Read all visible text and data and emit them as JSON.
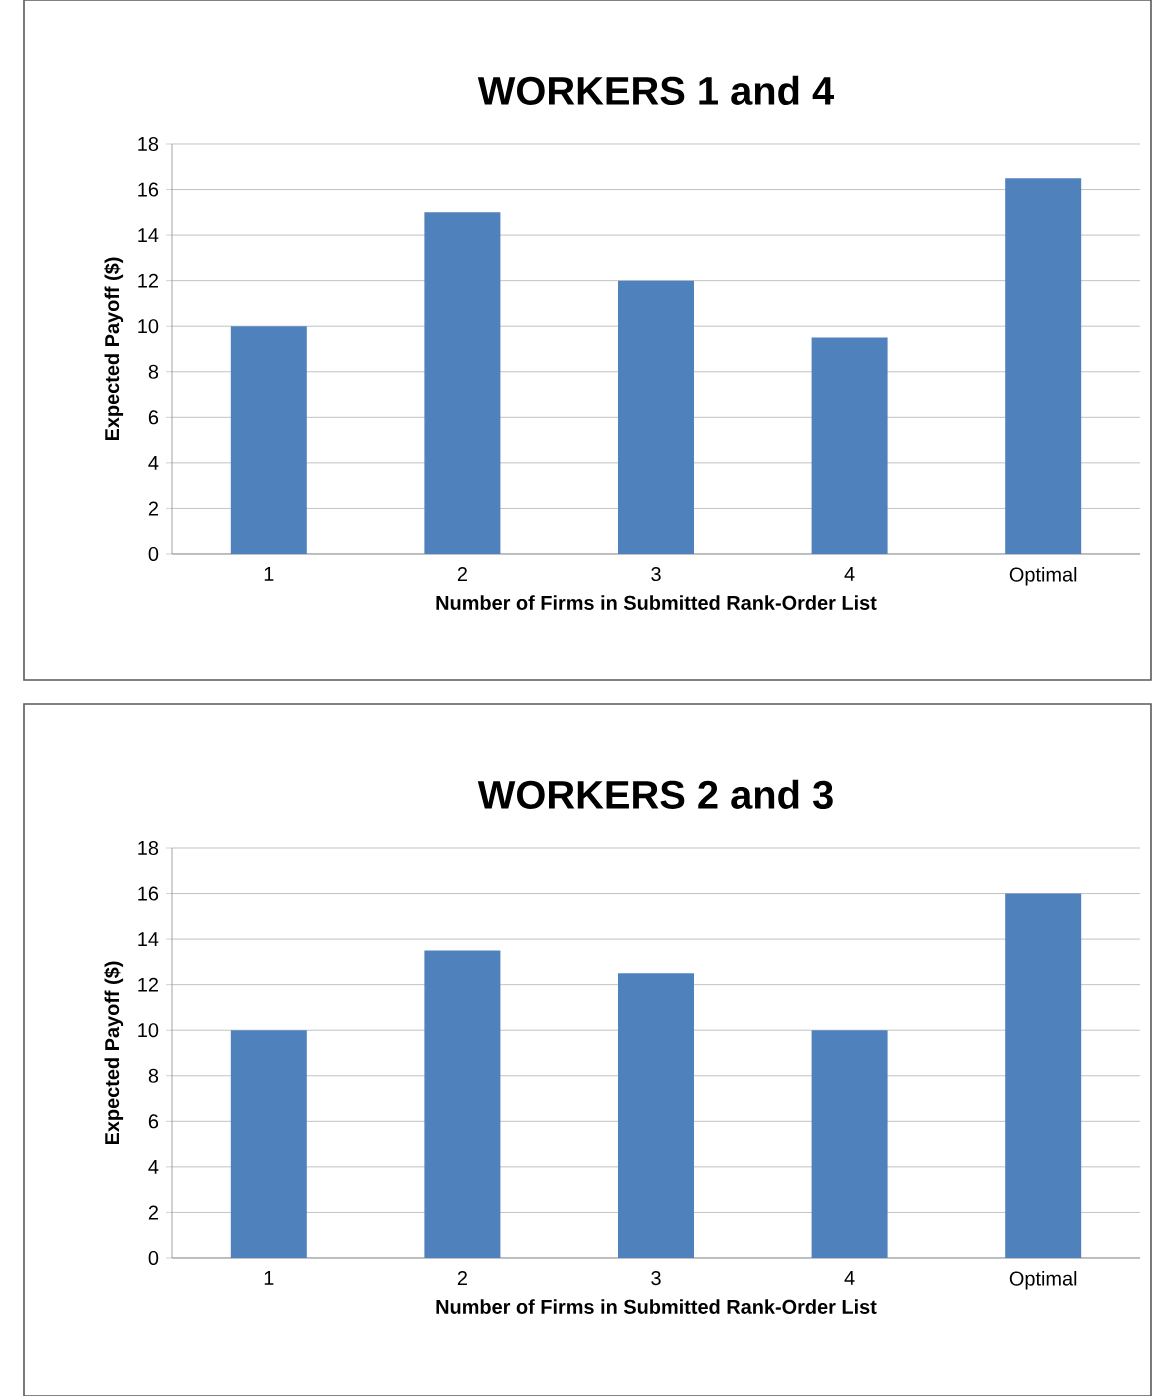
{
  "chart_data": [
    {
      "type": "bar",
      "title": "WORKERS 1 and 4",
      "xlabel": "Number of Firms in Submitted Rank-Order List",
      "ylabel": "Expected Payoff ($)",
      "categories": [
        "1",
        "2",
        "3",
        "4",
        "Optimal"
      ],
      "values": [
        10,
        15,
        12,
        9.5,
        16.5
      ],
      "color": "#4f81bd",
      "ylim": [
        0,
        18
      ],
      "yticks": [
        0,
        2,
        4,
        6,
        8,
        10,
        12,
        14,
        16,
        18
      ],
      "grid": "y"
    },
    {
      "type": "bar",
      "title": "WORKERS 2 and 3",
      "xlabel": "Number of Firms in Submitted Rank-Order List",
      "ylabel": "Expected Payoff ($)",
      "categories": [
        "1",
        "2",
        "3",
        "4",
        "Optimal"
      ],
      "values": [
        10,
        13.5,
        12.5,
        10,
        16
      ],
      "color": "#4f81bd",
      "ylim": [
        0,
        18
      ],
      "yticks": [
        0,
        2,
        4,
        6,
        8,
        10,
        12,
        14,
        16,
        18
      ],
      "grid": "y"
    }
  ]
}
